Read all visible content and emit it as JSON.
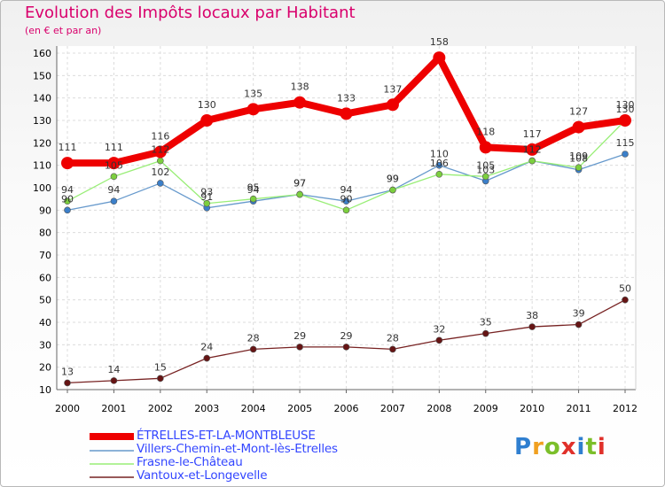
{
  "header": {
    "title": "Evolution des Impôts locaux par Habitant",
    "subtitle": "(en € et par an)"
  },
  "brand": {
    "name": "Proxiti",
    "colors": [
      "#2f7fd0",
      "#f0a020",
      "#7bbf2a",
      "#e0302a",
      "#2f7fd0",
      "#7bbf2a",
      "#e0302a"
    ]
  },
  "chart_data": {
    "type": "line",
    "title": "Evolution des Impôts locaux par Habitant",
    "subtitle": "(en € et par an)",
    "xlabel": "",
    "ylabel": "",
    "categories": [
      "2000",
      "2001",
      "2002",
      "2003",
      "2004",
      "2005",
      "2006",
      "2007",
      "2008",
      "2009",
      "2010",
      "2011",
      "2012"
    ],
    "ylim": [
      10,
      160
    ],
    "yticks": [
      10,
      20,
      30,
      40,
      50,
      60,
      70,
      80,
      90,
      100,
      110,
      120,
      130,
      140,
      150,
      160
    ],
    "grid": true,
    "legend_position": "bottom-left",
    "series": [
      {
        "name": "ÉTRELLES-ET-LA-MONTBLEUSE",
        "color": "#ee0000",
        "marker": "#ee0000",
        "width": 8,
        "radius": 7,
        "values": [
          111,
          111,
          116,
          130,
          135,
          138,
          133,
          137,
          158,
          118,
          117,
          127,
          130
        ]
      },
      {
        "name": "Villers-Chemin-et-Mont-lès-Etrelles",
        "color": "#6699cc",
        "marker": "#3b7fc9",
        "width": 1.3,
        "radius": 3.5,
        "values": [
          90,
          94,
          102,
          91,
          94,
          97,
          94,
          99,
          110,
          103,
          112,
          108,
          115
        ]
      },
      {
        "name": "Frasne-le-Château",
        "color": "#99ee77",
        "marker": "#7ccf3e",
        "width": 1.3,
        "radius": 3.5,
        "values": [
          94,
          105,
          112,
          93,
          95,
          97,
          90,
          99,
          106,
          105,
          112,
          109,
          130
        ]
      },
      {
        "name": "Vantoux-et-Longevelle",
        "color": "#772222",
        "marker": "#661414",
        "width": 1.3,
        "radius": 3.5,
        "values": [
          13,
          14,
          15,
          24,
          28,
          29,
          29,
          28,
          32,
          35,
          38,
          39,
          50
        ]
      }
    ]
  }
}
